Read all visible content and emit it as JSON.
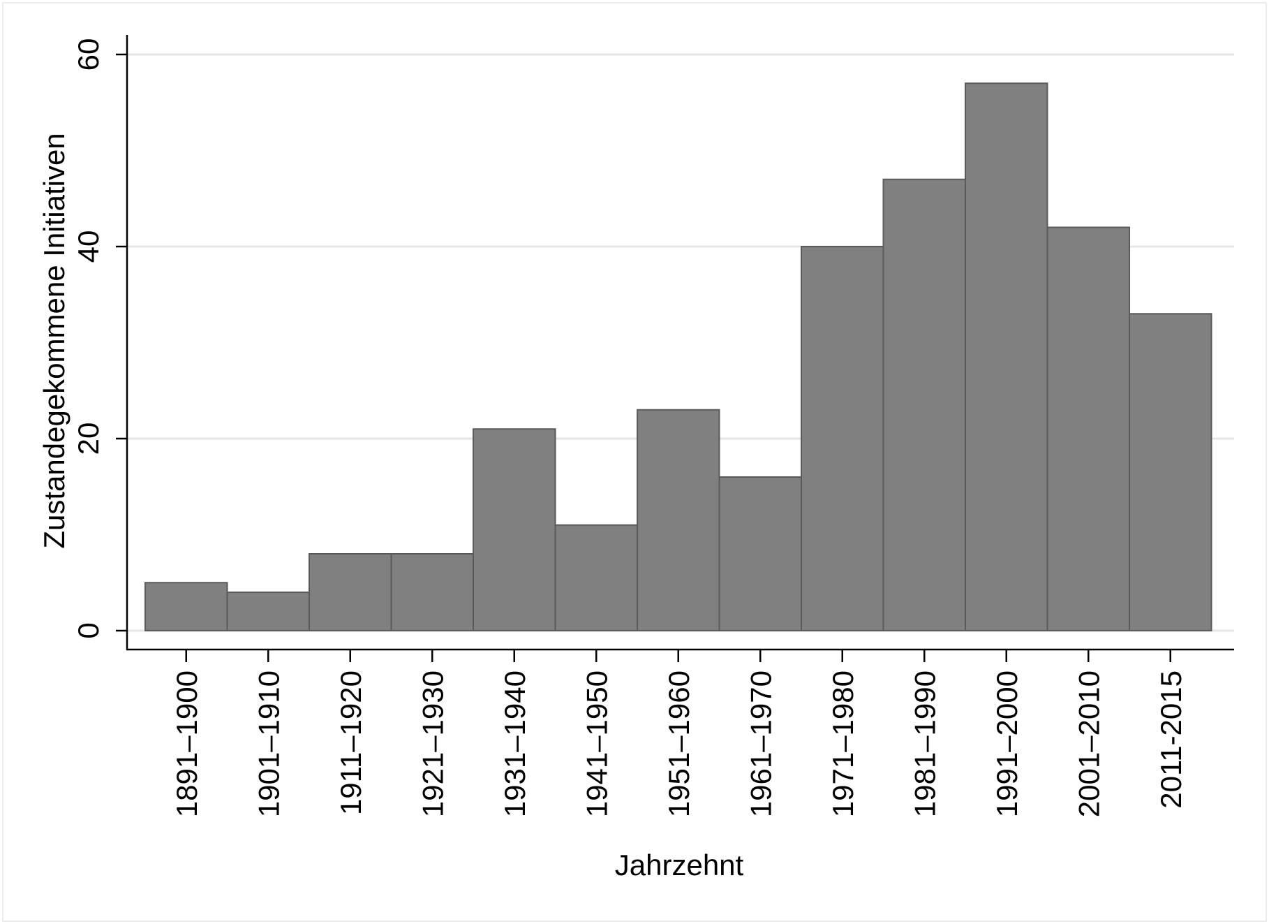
{
  "chart_data": {
    "type": "bar",
    "title": "",
    "xlabel": "Jahrzehnt",
    "ylabel": "Zustandegekommene Initiativen",
    "categories": [
      "1891–1900",
      "1901–1910",
      "1911–1920",
      "1921–1930",
      "1931–1940",
      "1941–1950",
      "1951–1960",
      "1961–1970",
      "1971–1980",
      "1981–1990",
      "1991–2000",
      "2001–2010",
      "2011-2015"
    ],
    "values": [
      5,
      4,
      8,
      8,
      21,
      11,
      23,
      16,
      40,
      47,
      57,
      42,
      33
    ],
    "ylim": [
      0,
      60
    ],
    "yticks": [
      0,
      20,
      40,
      60
    ],
    "grid": true,
    "legend": "none",
    "bar_color": "#808080",
    "bar_edge_color": "#5a5a5a",
    "grid_color": "#e6e6e6"
  }
}
